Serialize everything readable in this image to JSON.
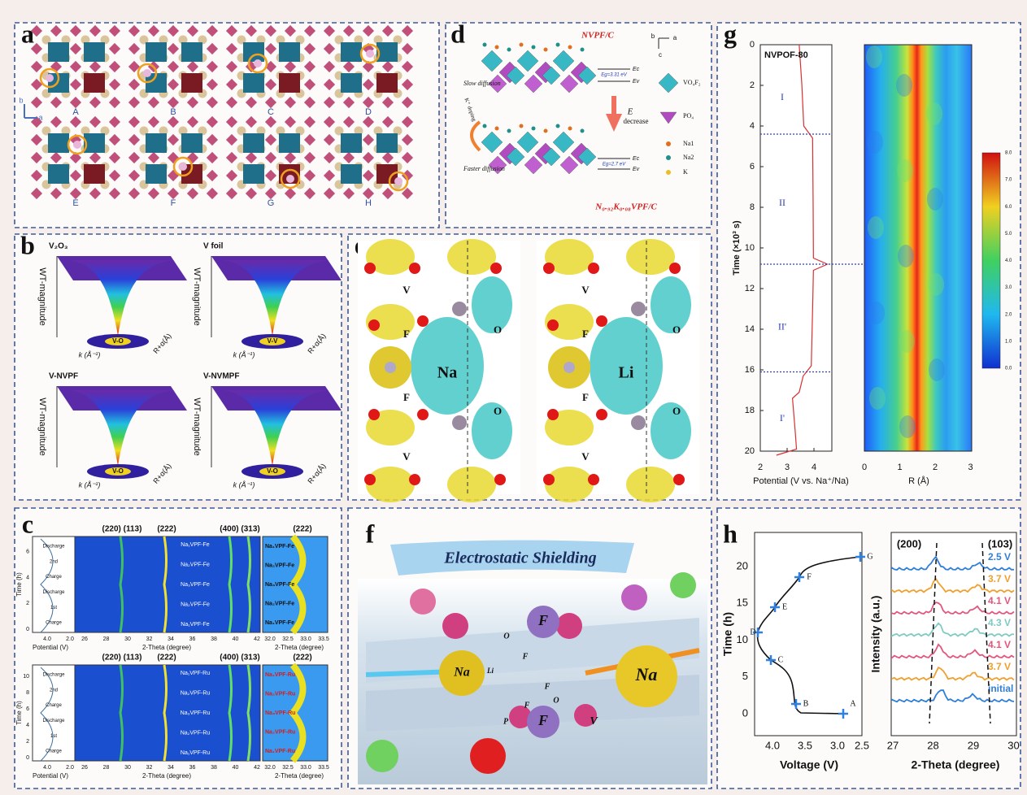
{
  "panel_a": {
    "letter": "a",
    "axis_b": "b",
    "axis_a": "a",
    "sites": [
      "A",
      "B",
      "C",
      "D",
      "E",
      "F",
      "G",
      "H"
    ]
  },
  "panel_b": {
    "letter": "b",
    "plots": [
      {
        "title": "V₂O₃",
        "z_label": "WT-magnitude",
        "k_label": "k (Å⁻¹)",
        "r_label": "R+α(Å)",
        "peak": "V-O"
      },
      {
        "title": "V foil",
        "z_label": "WT-magnitude",
        "k_label": "k (Å⁻¹)",
        "r_label": "R+α(Å)",
        "peak": "V-V"
      },
      {
        "title": "V-NVPF",
        "z_label": "WT-magnitude",
        "k_label": "k (Å⁻¹)",
        "r_label": "R+α(Å)",
        "peak": "V-O"
      },
      {
        "title": "V-NVMPF",
        "z_label": "WT-magnitude",
        "k_label": "k (Å⁻¹)",
        "r_label": "R+α(Å)",
        "peak": "V-O"
      }
    ]
  },
  "panel_c": {
    "letter": "c",
    "blocks": [
      {
        "peaks": [
          "(220) (113)",
          "(222)",
          "(400) (313)"
        ],
        "inset_peak": "(222)",
        "stages": [
          "Discharge",
          "2nd",
          "Charge",
          "Discharge",
          "1st",
          "Charge"
        ],
        "phases": [
          "Na₁VPF-Fe",
          "Na₂VPF-Fe",
          "Na₃VPF-Fe",
          "Na₂VPF-Fe",
          "Na₁VPF-Fe"
        ],
        "inset_phases": [
          "Na₁VPF-Fe",
          "Na₂VPF-Fe",
          "Na₃VPF-Fe",
          "Na₂VPF-Fe",
          "Na₁VPF-Fe"
        ],
        "time_ticks": [
          "0",
          "2",
          "4",
          "6"
        ],
        "potential_ticks": [
          "4.0",
          "2.0"
        ],
        "theta_ticks": [
          "26",
          "28",
          "30",
          "32",
          "34",
          "36",
          "38",
          "40",
          "42"
        ],
        "inset_ticks": [
          "32.0",
          "32.5",
          "33.0",
          "33.5"
        ],
        "time_label": "Time (h)",
        "potential_label": "Potential (V)",
        "theta_label": "2-Theta (degree)",
        "inset_label": "2-Theta (degree)"
      },
      {
        "peaks": [
          "(220) (113)",
          "(222)",
          "(400) (313)"
        ],
        "inset_peak": "(222)",
        "stages": [
          "Discharge",
          "2nd",
          "Charge",
          "Discharge",
          "1st",
          "Charge"
        ],
        "phases": [
          "Na₁VPF-Ru",
          "Na₂VPF-Ru",
          "Na₃VPF-Ru",
          "Na₂VPF-Ru",
          "Na₁VPF-Ru"
        ],
        "inset_phases": [
          "Na₁VPF-Ru",
          "Na₂VPF-Ru",
          "Na₃VPF-Ru",
          "Na₂VPF-Ru",
          "Na₁VPF-Ru"
        ],
        "time_ticks": [
          "0",
          "2",
          "4",
          "6",
          "8",
          "10"
        ],
        "potential_ticks": [
          "4.0",
          "2.0"
        ],
        "theta_ticks": [
          "26",
          "28",
          "30",
          "32",
          "34",
          "36",
          "38",
          "40",
          "42"
        ],
        "inset_ticks": [
          "32.0",
          "32.5",
          "33.0",
          "33.5"
        ],
        "time_label": "Time (h)",
        "potential_label": "Potential (V)",
        "theta_label": "2-Theta (degree)",
        "inset_label": "2-Theta (degree)"
      }
    ]
  },
  "panel_d": {
    "letter": "d",
    "title_top": "NVPF/C",
    "title_bottom": "N₀.₉₂K₀.₀₈VPF/C",
    "slow": "Slow diffusion",
    "fast": "Faster diffusion",
    "doping": "K⁺ doping",
    "energy": "E",
    "decrease": "decrease",
    "gap_top": "Eg=3.31 eV",
    "gap_bottom": "Eg=2.7 eV",
    "ec": "Ec",
    "ev": "Ev",
    "axes": [
      "b",
      "a",
      "c"
    ],
    "legend": [
      "VO₄F₂",
      "PO₄",
      "Na1",
      "Na2",
      "K"
    ]
  },
  "panel_e": {
    "letter": "e",
    "left": [
      "V",
      "F",
      "Na",
      "O",
      "F",
      "O",
      "V"
    ],
    "right": [
      "V",
      "F",
      "Li",
      "O",
      "F",
      "O",
      "V"
    ]
  },
  "panel_f": {
    "letter": "f",
    "title": "Electrostatic Shielding",
    "labels": [
      "F",
      "O",
      "F",
      "Na",
      "Li",
      "F",
      "Na",
      "F",
      "O",
      "P",
      "F",
      "V"
    ]
  },
  "panel_g": {
    "letter": "g",
    "sample": "NVPOF-80",
    "time_ticks": [
      "0",
      "2",
      "4",
      "6",
      "8",
      "10",
      "12",
      "14",
      "16",
      "18",
      "20"
    ],
    "potential_ticks": [
      "2",
      "3",
      "4"
    ],
    "stages": [
      "I",
      "II",
      "II'",
      "I'"
    ],
    "time_label": "Time (×10³ s)",
    "potential_label": "Potential (V vs. Na⁺/Na)",
    "r_ticks": [
      "0",
      "1",
      "2",
      "3"
    ],
    "r_label": "R (Å)",
    "colorbar_ticks": [
      "8.0",
      "7.0",
      "6.0",
      "5.0",
      "4.0",
      "3.0",
      "2.0",
      "1.0",
      "0.0"
    ]
  },
  "panel_h": {
    "letter": "h",
    "time_ticks": [
      "0",
      "5",
      "10",
      "15",
      "20"
    ],
    "voltage_ticks": [
      "4.0",
      "3.5",
      "3.0",
      "2.5"
    ],
    "points": [
      "A",
      "B",
      "C",
      "D",
      "E",
      "F",
      "G"
    ],
    "time_label": "Time (h)",
    "voltage_label": "Voltage (V)",
    "peaks": [
      "(200)",
      "(103)"
    ],
    "curves": [
      {
        "label": "2.5 V",
        "color": "#2f7fd8"
      },
      {
        "label": "3.7 V",
        "color": "#f0a030"
      },
      {
        "label": "4.1 V",
        "color": "#e2577e"
      },
      {
        "label": "4.3 V",
        "color": "#7fcac2"
      },
      {
        "label": "4.1 V",
        "color": "#e2577e"
      },
      {
        "label": "3.7 V",
        "color": "#f0a030"
      },
      {
        "label": "initial",
        "color": "#2f7fd8"
      }
    ],
    "theta_ticks": [
      "27",
      "28",
      "29",
      "30"
    ],
    "theta_label": "2-Theta (degree)",
    "intensity_label": "Intensity (a.u.)"
  }
}
